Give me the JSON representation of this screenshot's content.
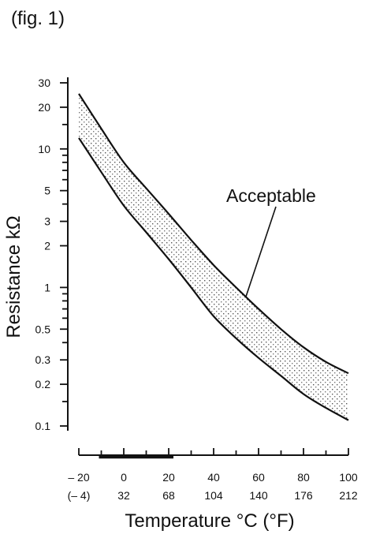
{
  "figure_label": "(fig. 1)",
  "chart_data": {
    "type": "area",
    "title": "",
    "xlabel": "Temperature °C (°F)",
    "ylabel": "Resistance kΩ",
    "y_scale": "log",
    "ylim": [
      0.1,
      30
    ],
    "xlim": [
      -20,
      100
    ],
    "grid": false,
    "y_ticks": [
      {
        "value": 30,
        "label": "30"
      },
      {
        "value": 20,
        "label": "20"
      },
      {
        "value": 10,
        "label": "10"
      },
      {
        "value": 5,
        "label": "5"
      },
      {
        "value": 3,
        "label": "3"
      },
      {
        "value": 2,
        "label": "2"
      },
      {
        "value": 1,
        "label": "1"
      },
      {
        "value": 0.5,
        "label": "0.5"
      },
      {
        "value": 0.3,
        "label": "0.3"
      },
      {
        "value": 0.2,
        "label": "0.2"
      },
      {
        "value": 0.1,
        "label": "0.1"
      }
    ],
    "y_minor_ticks": [
      15,
      9,
      8,
      7,
      6,
      4,
      0.9,
      0.8,
      0.7,
      0.6,
      0.4,
      0.15
    ],
    "x_ticks": [
      {
        "value": -20,
        "label": "– 20",
        "label2": "(– 4)"
      },
      {
        "value": 0,
        "label": "0",
        "label2": "32"
      },
      {
        "value": 20,
        "label": "20",
        "label2": "68"
      },
      {
        "value": 40,
        "label": "40",
        "label2": "104"
      },
      {
        "value": 60,
        "label": "60",
        "label2": "140"
      },
      {
        "value": 80,
        "label": "80",
        "label2": "176"
      },
      {
        "value": 100,
        "label": "100",
        "label2": "212"
      }
    ],
    "x_minor_ticks": [
      -10,
      10,
      30,
      50,
      70,
      90
    ],
    "highlight_range": [
      -10,
      20
    ],
    "series": [
      {
        "role": "upper",
        "x": [
          -20,
          -10,
          0,
          10,
          20,
          30,
          40,
          50,
          60,
          70,
          80,
          90,
          100
        ],
        "y": [
          25,
          14,
          8,
          5.2,
          3.4,
          2.2,
          1.45,
          1.0,
          0.7,
          0.5,
          0.37,
          0.29,
          0.24
        ]
      },
      {
        "role": "lower",
        "x": [
          -20,
          -10,
          0,
          10,
          20,
          30,
          40,
          50,
          60,
          70,
          80,
          90,
          100
        ],
        "y": [
          12,
          6.8,
          3.9,
          2.5,
          1.6,
          1.0,
          0.62,
          0.43,
          0.31,
          0.23,
          0.17,
          0.135,
          0.11
        ]
      }
    ],
    "annotations": [
      {
        "text": "Acceptable",
        "points_to": {
          "x": 55,
          "y": 0.85
        }
      }
    ]
  }
}
